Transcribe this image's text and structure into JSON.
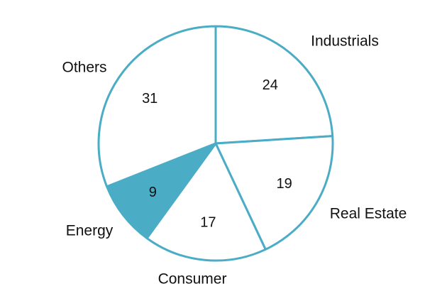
{
  "chart_data": {
    "type": "pie",
    "title": "",
    "start_angle_deg": 0,
    "direction": "clockwise",
    "slices": [
      {
        "label": "Industrials",
        "value": 24,
        "value_text": "24",
        "highlighted": false
      },
      {
        "label": "Real Estate",
        "value": 19,
        "value_text": "19",
        "highlighted": false
      },
      {
        "label": "Consumer",
        "value": 17,
        "value_text": "17",
        "highlighted": false
      },
      {
        "label": "Energy",
        "value": 9,
        "value_text": "9",
        "highlighted": true
      },
      {
        "label": "Others",
        "value": 31,
        "value_text": "31",
        "highlighted": false
      }
    ],
    "colors": {
      "outline": "#4BACC6",
      "normal_fill": "#FFFFFF",
      "highlight_fill": "#4BACC6"
    },
    "legend": "none",
    "grid": false
  }
}
